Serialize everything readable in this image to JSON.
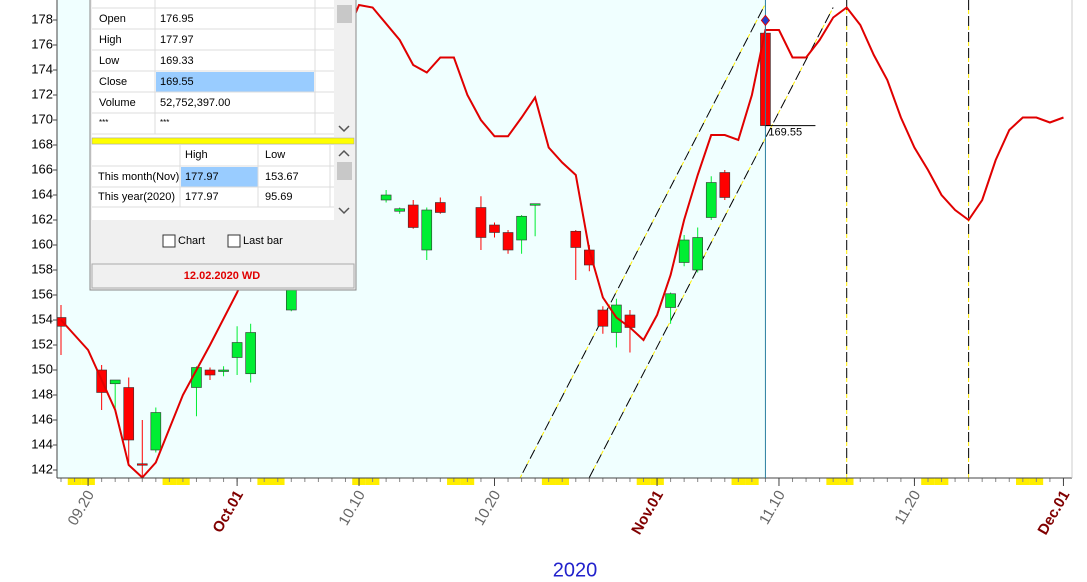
{
  "chart_data": {
    "type": "candlestick",
    "year": "2020",
    "xlim": [
      "09.18",
      "12.02"
    ],
    "ylim": [
      141.4,
      179.2
    ],
    "yticks": [
      142,
      144,
      146,
      148,
      150,
      152,
      154,
      156,
      158,
      160,
      162,
      164,
      166,
      168,
      170,
      172,
      174,
      176,
      178
    ],
    "xticks": [
      "09.20",
      {
        "value": "10.01",
        "label": "Oct.01"
      },
      "10.10",
      "10.20",
      {
        "value": "11.01",
        "label": "Nov.01"
      },
      "11.10",
      "11.20",
      {
        "value": "12.01",
        "label": "Dec.01"
      }
    ],
    "up_color": "#00ee33",
    "down_color": "#ff0000",
    "x": [
      "09.18",
      "09.21",
      "09.22",
      "09.23",
      "09.24",
      "09.25",
      "09.28",
      "09.29",
      "09.30",
      "10.01",
      "10.02",
      "10.05",
      "10.12",
      "10.13",
      "10.14",
      "10.15",
      "10.16",
      "10.19",
      "10.20",
      "10.21",
      "10.22",
      "10.23",
      "10.26",
      "10.27",
      "10.28",
      "10.29",
      "10.30",
      "11.02",
      "11.03",
      "11.04",
      "11.05",
      "11.06",
      "11.09"
    ],
    "open": [
      154.2,
      150.0,
      148.9,
      148.6,
      142.5,
      143.6,
      148.6,
      150.0,
      149.9,
      151.0,
      149.7,
      154.8,
      163.6,
      162.7,
      163.2,
      159.6,
      163.4,
      163.0,
      161.6,
      161.0,
      160.4,
      163.2,
      161.1,
      159.6,
      154.8,
      153.0,
      154.4,
      155.0,
      158.6,
      158.0,
      162.2,
      165.8,
      176.95
    ],
    "high": [
      155.2,
      150.4,
      149.2,
      149.4,
      146.0,
      147.0,
      150.3,
      150.2,
      150.3,
      153.5,
      153.7,
      157.5,
      164.4,
      163.0,
      163.6,
      163.0,
      163.8,
      163.9,
      161.8,
      161.2,
      162.4,
      163.3,
      161.2,
      160.0,
      155.1,
      155.7,
      154.8,
      156.2,
      160.8,
      161.4,
      165.5,
      166.0,
      177.97
    ],
    "low": [
      151.2,
      146.8,
      146.8,
      142.6,
      141.5,
      143.4,
      146.3,
      149.2,
      149.5,
      149.6,
      149.0,
      154.7,
      163.4,
      162.5,
      161.3,
      158.8,
      162.5,
      159.6,
      160.6,
      159.3,
      159.3,
      160.7,
      157.2,
      157.9,
      152.9,
      151.8,
      151.4,
      153.7,
      158.3,
      157.8,
      162.0,
      163.6,
      169.33
    ],
    "close": [
      153.5,
      148.2,
      149.2,
      144.4,
      142.4,
      146.6,
      150.2,
      149.6,
      150.0,
      152.2,
      153.0,
      156.6,
      164.0,
      162.9,
      161.4,
      162.8,
      162.6,
      160.6,
      161.0,
      159.6,
      162.3,
      163.3,
      159.8,
      158.4,
      153.5,
      155.2,
      153.4,
      156.1,
      160.4,
      160.6,
      165.0,
      163.8,
      169.55
    ],
    "line": {
      "color": "#e00000",
      "x": [
        "09.18",
        "09.20",
        "09.22",
        "09.23",
        "09.24",
        "09.25",
        "09.27",
        "09.29",
        "10.01",
        "10.10",
        "10.11",
        "10.13",
        "10.14",
        "10.15",
        "10.16",
        "10.17",
        "10.18",
        "10.19",
        "10.20",
        "10.21",
        "10.22",
        "10.23",
        "10.24",
        "10.25",
        "10.26",
        "10.27",
        "10.28",
        "10.29",
        "10.30",
        "10.31",
        "11.01",
        "11.02",
        "11.03",
        "11.04",
        "11.05",
        "11.06",
        "11.07",
        "11.08",
        "11.09",
        "11.10",
        "11.11",
        "11.12",
        "11.13",
        "11.14",
        "11.15",
        "11.16",
        "11.17",
        "11.18",
        "11.19",
        "11.20",
        "11.21",
        "11.22",
        "11.23",
        "11.24",
        "11.25",
        "11.26",
        "11.27",
        "11.28",
        "11.29",
        "11.30",
        "12.01"
      ],
      "values": [
        154.0,
        151.6,
        146.8,
        142.4,
        141.4,
        142.6,
        148.0,
        152.0,
        156.2,
        179.2,
        179.0,
        176.4,
        174.4,
        173.8,
        175.0,
        175.0,
        172.0,
        170.0,
        168.7,
        168.7,
        170.2,
        171.8,
        167.8,
        166.6,
        165.6,
        159.6,
        155.8,
        154.2,
        153.4,
        152.4,
        154.4,
        157.6,
        162.0,
        165.6,
        168.8,
        168.8,
        168.4,
        172.0,
        177.2,
        177.2,
        175.0,
        175.0,
        176.4,
        178.2,
        179.0,
        177.6,
        175.2,
        173.2,
        170.2,
        167.8,
        166.0,
        164.0,
        162.8,
        162.0,
        163.6,
        166.8,
        169.2,
        170.2,
        170.2,
        169.8,
        170.2
      ]
    },
    "channels": [
      {
        "x": [
          "10.21",
          "11.09"
        ],
        "values": [
          139.5,
          179.3
        ]
      },
      {
        "x": [
          "10.27",
          "11.14"
        ],
        "values": [
          141.4,
          179.0
        ]
      }
    ],
    "vlines": [
      "11.15",
      "11.24"
    ]
  },
  "panel": {
    "rows": [
      [
        "Open",
        "176.95"
      ],
      [
        "High",
        "177.97"
      ],
      [
        "Low",
        "169.33"
      ],
      [
        "Close",
        "169.55"
      ],
      [
        "Volume",
        "52,752,397.00"
      ],
      [
        "***",
        "***"
      ]
    ],
    "range_headers": [
      "High",
      "Low"
    ],
    "range_rows": [
      [
        "This month(Nov)",
        "177.97",
        "153.67"
      ],
      [
        "This year(2020)",
        "177.97",
        "95.69"
      ]
    ],
    "checkboxes": [
      "Chart",
      "Last bar"
    ],
    "footer": "12.02.2020 WD"
  }
}
